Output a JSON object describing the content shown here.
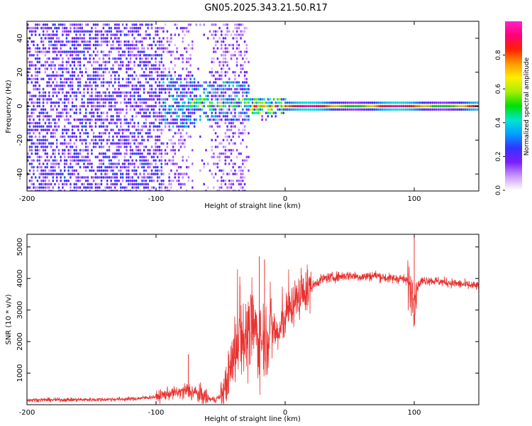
{
  "figure": {
    "title": "GN05.2025.343.21.50.R17"
  },
  "chart_data": [
    {
      "type": "heatmap",
      "name": "spectrogram",
      "xlabel": "Height of straight line (km)",
      "ylabel": "Frequency (Hz)",
      "xlim": [
        -200,
        150
      ],
      "ylim": [
        -50,
        50
      ],
      "xticks": [
        -200,
        -100,
        0,
        100
      ],
      "yticks": [
        -40,
        -20,
        0,
        20,
        40
      ],
      "xtick_labels": [
        "-200",
        "-100",
        "0",
        "100"
      ],
      "ytick_labels": [
        "-40",
        "-20",
        "0",
        "20",
        "40"
      ],
      "colorbar": {
        "label": "Normalized spectral amplitude",
        "range": [
          0,
          1
        ],
        "ticks": [
          0.0,
          0.2,
          0.4,
          0.6,
          0.8
        ],
        "tick_labels": [
          "0.0",
          "0.2",
          "0.4",
          "0.6",
          "0.8"
        ],
        "colors": [
          "#ffffff",
          "#cc99ff",
          "#7a1fff",
          "#3333ff",
          "#00a0ff",
          "#00e5d0",
          "#00e000",
          "#aaee00",
          "#ffee00",
          "#ff9900",
          "#ff2200",
          "#ff0077",
          "#ff22cc"
        ]
      },
      "regions": [
        {
          "desc": "broadband noise",
          "x_range": [
            -200,
            -100
          ],
          "freq_range": [
            -50,
            50
          ],
          "amplitude": 0.2
        },
        {
          "desc": "transition noise",
          "x_range": [
            -100,
            -30
          ],
          "freq_range": [
            -50,
            50
          ],
          "amplitude": 0.12
        },
        {
          "desc": "signal onset",
          "x_range": [
            -90,
            0
          ],
          "freq_range": [
            -8,
            15
          ],
          "amplitude": 0.4
        },
        {
          "desc": "carrier line",
          "x_range": [
            0,
            150
          ],
          "freq_range": [
            -1.5,
            1.5
          ],
          "amplitude": 0.95
        }
      ]
    },
    {
      "type": "line",
      "name": "snr",
      "xlabel": "Height of straight line (km)",
      "ylabel": "SNR (10 * v/v)",
      "xlim": [
        -200,
        150
      ],
      "ylim": [
        0,
        5400
      ],
      "xticks": [
        -200,
        -100,
        0,
        100
      ],
      "yticks": [
        1000,
        2000,
        3000,
        4000,
        5000
      ],
      "xtick_labels": [
        "-200",
        "-100",
        "0",
        "100"
      ],
      "ytick_labels": [
        "1000",
        "2000",
        "3000",
        "4000",
        "5000"
      ],
      "color": "#e8312f",
      "series": [
        {
          "name": "SNR",
          "x": [
            -200,
            -150,
            -120,
            -100,
            -90,
            -80,
            -75,
            -65,
            -60,
            -55,
            -48,
            -40,
            -35,
            -30,
            -25,
            -20,
            -15,
            -10,
            -5,
            0,
            10,
            20,
            25,
            30,
            40,
            50,
            60,
            70,
            80,
            90,
            95,
            98,
            100,
            102,
            105,
            110,
            120,
            130,
            140,
            150
          ],
          "y": [
            150,
            160,
            180,
            250,
            350,
            400,
            450,
            300,
            200,
            150,
            300,
            1500,
            2500,
            2000,
            2500,
            2000,
            2200,
            2400,
            2200,
            2800,
            3400,
            3700,
            3900,
            4000,
            4050,
            4100,
            4050,
            4100,
            4000,
            4000,
            3900,
            3600,
            3300,
            3700,
            3900,
            3950,
            3900,
            3850,
            3800,
            3750
          ]
        },
        {
          "name": "SNR peaks",
          "x": [
            -75,
            -35,
            -20,
            -16,
            100
          ],
          "y": [
            1600,
            3800,
            4700,
            4600,
            5300
          ]
        }
      ]
    }
  ]
}
